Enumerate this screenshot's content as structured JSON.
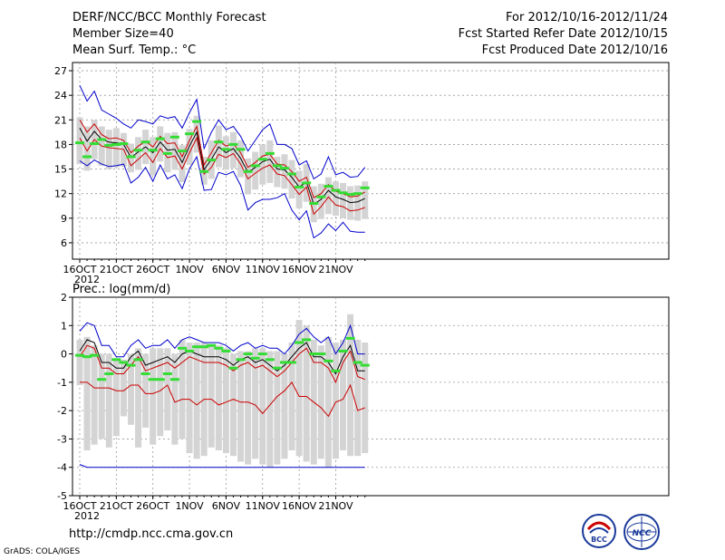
{
  "header": {
    "title": "DERF/NCC/BCC Monthly Forecast",
    "member_size": "Member Size=40",
    "variable": "Mean Surf. Temp.: °C",
    "period": "For 2012/10/16-2012/11/24",
    "started": "Fcst Started Refer Date 2012/10/15",
    "produced": "Fcst Produced Date 2012/10/16"
  },
  "chart_data": [
    {
      "type": "line",
      "title": "Mean Surf. Temp.: °C",
      "ylabel": "°C",
      "ylim": [
        4,
        28
      ],
      "yticks": [
        6,
        9,
        12,
        15,
        18,
        21,
        24,
        27
      ],
      "xlabels": [
        "16OCT",
        "21OCT",
        "26OCT",
        "1NOV",
        "6NOV",
        "11NOV",
        "16NOV",
        "21NOV"
      ],
      "year_label": "2012",
      "n_days": 40,
      "series": [
        {
          "name": "ensemble max",
          "color": "#0000cc",
          "values": [
            25.2,
            23.3,
            24.5,
            22.2,
            21.7,
            21.2,
            20.5,
            20.0,
            21.0,
            20.8,
            20.5,
            21.5,
            21.2,
            21.4,
            20.0,
            21.9,
            23.5,
            17.5,
            19.5,
            21.0,
            19.8,
            20.2,
            19.0,
            17.2,
            18.5,
            19.8,
            20.5,
            18.0,
            18.0,
            17.5,
            15.5,
            16.0,
            13.8,
            14.4,
            16.5,
            14.3,
            14.6,
            14.0,
            14.1,
            15.2
          ]
        },
        {
          "name": "upper bound",
          "color": "#cc0000",
          "values": [
            21.0,
            19.5,
            20.5,
            19.2,
            18.7,
            18.8,
            18.5,
            17.0,
            17.8,
            18.4,
            17.7,
            19.0,
            18.1,
            18.2,
            16.5,
            18.5,
            20.2,
            15.5,
            17.0,
            18.5,
            17.8,
            18.1,
            17.0,
            15.2,
            15.8,
            16.6,
            16.8,
            15.6,
            15.5,
            14.7,
            13.5,
            14.0,
            11.5,
            12.0,
            13.1,
            12.3,
            12.0,
            11.6,
            11.7,
            12.2
          ]
        },
        {
          "name": "ensemble mean",
          "color": "#000000",
          "values": [
            20.0,
            18.4,
            19.6,
            18.6,
            18.3,
            18.2,
            18.0,
            16.4,
            17.1,
            17.7,
            17.0,
            18.3,
            17.3,
            17.4,
            15.8,
            17.8,
            19.5,
            14.9,
            16.2,
            17.7,
            17.0,
            17.5,
            16.3,
            14.6,
            15.2,
            15.9,
            16.2,
            15.0,
            14.9,
            14.0,
            12.8,
            13.4,
            10.7,
            11.3,
            12.4,
            11.6,
            11.3,
            10.9,
            11.0,
            11.4
          ]
        },
        {
          "name": "lower bound",
          "color": "#cc0000",
          "values": [
            18.8,
            17.2,
            18.6,
            17.8,
            17.6,
            17.5,
            17.4,
            15.4,
            16.2,
            17.0,
            15.8,
            17.5,
            16.4,
            16.6,
            15.0,
            17.0,
            18.8,
            14.4,
            15.2,
            16.8,
            16.4,
            16.9,
            15.6,
            13.8,
            14.5,
            15.1,
            15.5,
            14.4,
            14.2,
            13.1,
            11.9,
            12.8,
            9.5,
            10.4,
            11.6,
            10.6,
            10.4,
            9.9,
            10.0,
            10.3
          ]
        },
        {
          "name": "ensemble min",
          "color": "#0000cc",
          "values": [
            16.0,
            15.4,
            16.1,
            15.6,
            15.3,
            15.4,
            15.6,
            13.3,
            14.0,
            15.2,
            13.5,
            15.5,
            13.8,
            14.3,
            12.6,
            15.0,
            16.5,
            12.4,
            12.5,
            14.6,
            14.3,
            14.7,
            13.0,
            10.0,
            10.9,
            11.3,
            11.3,
            11.5,
            12.0,
            10.0,
            8.8,
            9.9,
            6.6,
            7.2,
            8.3,
            7.5,
            8.5,
            7.4,
            7.3,
            7.3
          ]
        }
      ],
      "observed_markers": {
        "name": "observation",
        "color": "#33dd33",
        "values": [
          18.2,
          16.5,
          18.1,
          18.6,
          17.9,
          18.0,
          18.1,
          16.5,
          17.3,
          18.3,
          17.3,
          18.7,
          16.9,
          18.9,
          17.2,
          19.3,
          20.8,
          14.7,
          16.1,
          18.3,
          17.4,
          18.0,
          17.4,
          14.7,
          15.4,
          16.2,
          16.9,
          15.4,
          15.1,
          14.4,
          12.8,
          13.3,
          10.8,
          11.6,
          12.9,
          12.4,
          12.1,
          11.9,
          12.0,
          12.7
        ]
      },
      "spread_boxes": {
        "name": "member spread",
        "color": "#d4d4d4",
        "low": [
          15.6,
          14.8,
          16.2,
          15.4,
          15.0,
          15.2,
          15.3,
          14.6,
          14.9,
          15.6,
          14.2,
          15.9,
          14.6,
          14.9,
          13.4,
          15.5,
          17.0,
          13.1,
          13.8,
          15.2,
          14.9,
          15.1,
          14.0,
          11.9,
          12.5,
          13.1,
          13.3,
          12.8,
          12.6,
          11.4,
          10.2,
          11.0,
          8.5,
          8.9,
          9.5,
          9.3,
          9.0,
          8.8,
          8.7,
          8.9
        ],
        "high": [
          21.3,
          20.2,
          21.0,
          20.2,
          19.8,
          20.0,
          19.4,
          18.1,
          18.9,
          19.8,
          18.9,
          20.2,
          19.4,
          19.5,
          17.9,
          19.9,
          21.5,
          16.5,
          18.5,
          20.3,
          19.0,
          19.5,
          18.5,
          16.3,
          17.1,
          18.0,
          18.5,
          16.5,
          16.8,
          16.1,
          14.8,
          15.6,
          12.9,
          13.2,
          14.0,
          13.5,
          13.3,
          12.9,
          13.0,
          13.5
        ]
      }
    },
    {
      "type": "line",
      "title": "Prec.: log(mm/d)",
      "ylabel": "log(mm/d)",
      "ylim": [
        -5,
        2
      ],
      "yticks": [
        -5,
        -4,
        -3,
        -2,
        -1,
        0,
        1,
        2
      ],
      "xlabels": [
        "16OCT",
        "21OCT",
        "26OCT",
        "1NOV",
        "6NOV",
        "11NOV",
        "16NOV",
        "21NOV"
      ],
      "year_label": "2012",
      "n_days": 40,
      "series": [
        {
          "name": "ensemble max",
          "color": "#0000cc",
          "values": [
            0.8,
            1.1,
            1.0,
            0.3,
            0.3,
            -0.1,
            -0.1,
            0.3,
            0.5,
            0.2,
            0.3,
            0.3,
            0.5,
            0.2,
            0.5,
            0.6,
            0.5,
            0.4,
            0.4,
            0.4,
            0.3,
            0.1,
            0.3,
            0.4,
            0.2,
            0.3,
            0.2,
            0.2,
            0.0,
            0.3,
            0.7,
            0.9,
            0.6,
            0.4,
            0.6,
            0.0,
            0.4,
            1.0,
            0.0,
            0.0
          ]
        },
        {
          "name": "upper bound",
          "color": "#cc0000",
          "values": [
            -0.1,
            0.3,
            0.2,
            -0.5,
            -0.5,
            -0.7,
            -0.7,
            -0.4,
            -0.1,
            -0.6,
            -0.5,
            -0.4,
            -0.3,
            -0.5,
            -0.3,
            -0.1,
            -0.2,
            -0.3,
            -0.3,
            -0.3,
            -0.4,
            -0.6,
            -0.4,
            -0.3,
            -0.5,
            -0.4,
            -0.6,
            -0.8,
            -0.6,
            -0.3,
            0.0,
            0.2,
            -0.3,
            -0.3,
            -0.5,
            -1.0,
            -0.3,
            0.1,
            -0.8,
            -0.9
          ]
        },
        {
          "name": "ensemble mean",
          "color": "#000000",
          "values": [
            0.1,
            0.5,
            0.4,
            -0.3,
            -0.3,
            -0.5,
            -0.5,
            -0.1,
            0.1,
            -0.4,
            -0.3,
            -0.2,
            -0.1,
            -0.3,
            0.0,
            0.1,
            0.0,
            -0.1,
            -0.1,
            -0.1,
            -0.2,
            -0.4,
            -0.2,
            -0.1,
            -0.3,
            -0.2,
            -0.4,
            -0.6,
            -0.4,
            -0.1,
            0.2,
            0.4,
            -0.1,
            -0.1,
            -0.3,
            -0.7,
            -0.1,
            0.3,
            -0.6,
            -0.6
          ]
        },
        {
          "name": "lower bound",
          "color": "#cc0000",
          "values": [
            -1.0,
            -1.0,
            -1.2,
            -1.2,
            -1.2,
            -1.3,
            -1.3,
            -1.1,
            -1.1,
            -1.4,
            -1.4,
            -1.3,
            -1.1,
            -1.7,
            -1.6,
            -1.6,
            -1.8,
            -1.6,
            -1.6,
            -1.8,
            -1.7,
            -1.6,
            -1.7,
            -1.7,
            -1.8,
            -2.1,
            -1.8,
            -1.5,
            -1.3,
            -1.0,
            -1.5,
            -1.5,
            -1.7,
            -1.9,
            -2.2,
            -1.7,
            -1.6,
            -1.1,
            -2.0,
            -1.9
          ]
        },
        {
          "name": "ensemble min",
          "color": "#0000cc",
          "values": [
            -3.9,
            -4.0,
            -4.0,
            -4.0,
            -4.0,
            -4.0,
            -4.0,
            -4.0,
            -4.0,
            -4.0,
            -4.0,
            -4.0,
            -4.0,
            -4.0,
            -4.0,
            -4.0,
            -4.0,
            -4.0,
            -4.0,
            -4.0,
            -4.0,
            -4.0,
            -4.0,
            -4.0,
            -4.0,
            -4.0,
            -4.0,
            -4.0,
            -4.0,
            -4.0,
            -4.0,
            -4.0,
            -4.0,
            -4.0,
            -4.0,
            -4.0,
            -4.0,
            -4.0,
            -4.0,
            -4.0
          ]
        }
      ],
      "observed_markers": {
        "name": "observation",
        "color": "#33dd33",
        "values": [
          -0.05,
          -0.1,
          -0.05,
          -0.9,
          -0.7,
          -0.2,
          -0.3,
          -0.4,
          -0.2,
          -0.7,
          -0.9,
          -0.9,
          -0.7,
          -0.9,
          0.2,
          0.1,
          0.25,
          0.25,
          0.3,
          0.2,
          0.1,
          -0.5,
          -0.2,
          0.0,
          -0.15,
          0.0,
          -0.2,
          -0.5,
          -0.3,
          -0.3,
          0.4,
          0.5,
          0.0,
          0.0,
          -0.25,
          -0.6,
          0.1,
          0.55,
          -0.3,
          -0.4
        ]
      },
      "spread_boxes": {
        "name": "member spread",
        "color": "#d4d4d4",
        "low": [
          -1.1,
          -3.4,
          -3.2,
          -3.0,
          -3.3,
          -2.9,
          -2.2,
          -2.5,
          -3.3,
          -2.6,
          -3.2,
          -2.9,
          -2.7,
          -3.2,
          -3.0,
          -3.5,
          -3.7,
          -3.6,
          -3.3,
          -3.4,
          -3.5,
          -3.6,
          -3.8,
          -3.9,
          -3.7,
          -3.9,
          -4.0,
          -3.9,
          -3.7,
          -3.4,
          -3.6,
          -3.8,
          -3.9,
          -3.7,
          -4.0,
          -3.7,
          -3.4,
          -3.6,
          -3.6,
          -3.5
        ],
        "high": [
          0.5,
          0.6,
          0.3,
          0.0,
          0.0,
          -0.2,
          -0.2,
          0.0,
          0.2,
          0.0,
          0.2,
          0.2,
          0.2,
          0.0,
          0.5,
          0.4,
          0.4,
          0.4,
          0.3,
          0.3,
          0.2,
          0.0,
          0.1,
          0.1,
          0.2,
          0.2,
          0.1,
          0.1,
          0.0,
          0.4,
          1.2,
          1.0,
          0.5,
          0.3,
          0.6,
          0.4,
          0.5,
          1.4,
          0.5,
          0.4
        ]
      }
    }
  ],
  "footer": {
    "url": "http://cmdp.ncc.cma.gov.cn",
    "grads": "GrADS: COLA/IGES",
    "logo_left": "BCC",
    "logo_right": "NCC"
  }
}
